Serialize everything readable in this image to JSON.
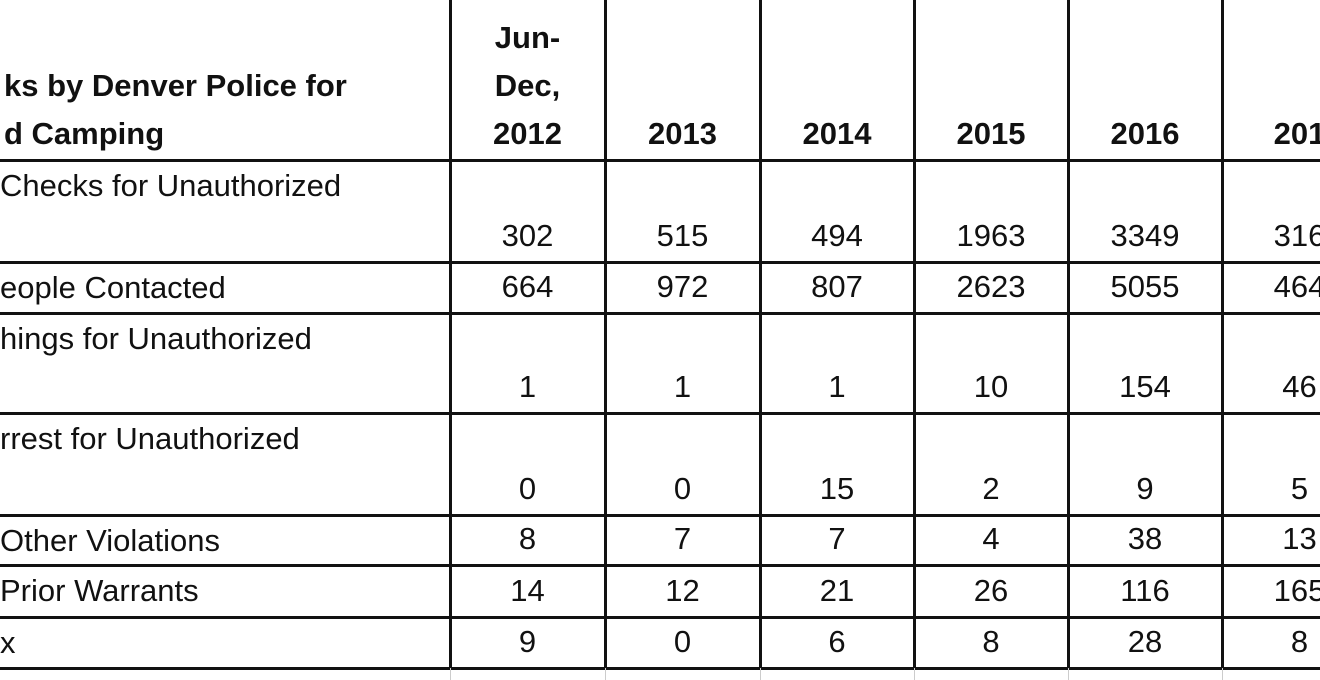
{
  "table": {
    "header": [
      [
        "ks by Denver Police for",
        "d Camping"
      ],
      [
        "Jun-",
        "Dec,",
        "2012"
      ],
      [
        "2013"
      ],
      [
        "2014"
      ],
      [
        "2015"
      ],
      [
        "2016"
      ],
      [
        "201"
      ]
    ],
    "rows": [
      [
        "Checks for Unauthorized",
        "302",
        "515",
        "494",
        "1963",
        "3349",
        "316"
      ],
      [
        "eople Contacted",
        "664",
        "972",
        "807",
        "2623",
        "5055",
        "464"
      ],
      [
        "hings for Unauthorized",
        "1",
        "1",
        "1",
        "10",
        "154",
        "46"
      ],
      [
        "rrest for Unauthorized",
        "0",
        "0",
        "15",
        "2",
        "9",
        "5"
      ],
      [
        "Other Violations",
        "8",
        "7",
        "7",
        "4",
        "38",
        "13"
      ],
      [
        "Prior Warrants",
        "14",
        "12",
        "21",
        "26",
        "116",
        "165"
      ],
      [
        "x",
        "9",
        "0",
        "6",
        "8",
        "28",
        "8"
      ]
    ]
  }
}
